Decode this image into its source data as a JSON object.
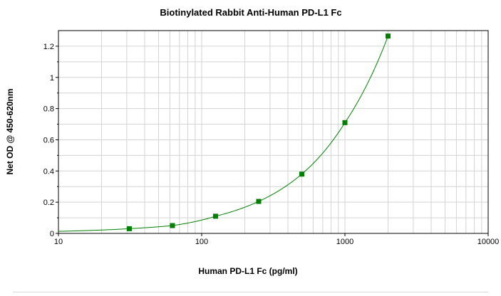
{
  "chart_data": {
    "type": "scatter",
    "title": "Biotinylated Rabbit Anti-Human PD-L1 Fc",
    "xlabel": "Human PD-L1 Fc (pg/ml)",
    "ylabel": "Net OD @ 450-620nm",
    "x_scale": "log",
    "xlim": [
      10,
      10000
    ],
    "ylim": [
      0,
      1.3
    ],
    "x_ticks": [
      10,
      100,
      1000,
      10000
    ],
    "x_tick_labels": [
      "10",
      "100",
      "1000",
      "10000"
    ],
    "y_ticks": [
      0,
      0.2,
      0.4,
      0.6,
      0.8,
      1,
      1.2
    ],
    "y_tick_labels": [
      "0",
      "0.2",
      "0.4",
      "0.6",
      "0.8",
      "1",
      "1.2"
    ],
    "grid": true,
    "series": [
      {
        "x": [
          31.25,
          62.5,
          125,
          250,
          500,
          1000,
          2000
        ],
        "y": [
          0.03,
          0.05,
          0.11,
          0.205,
          0.38,
          0.71,
          1.265
        ]
      }
    ],
    "colors": {
      "marker": "#008000",
      "curve": "#008000",
      "grid": "#d3d3d3"
    }
  }
}
